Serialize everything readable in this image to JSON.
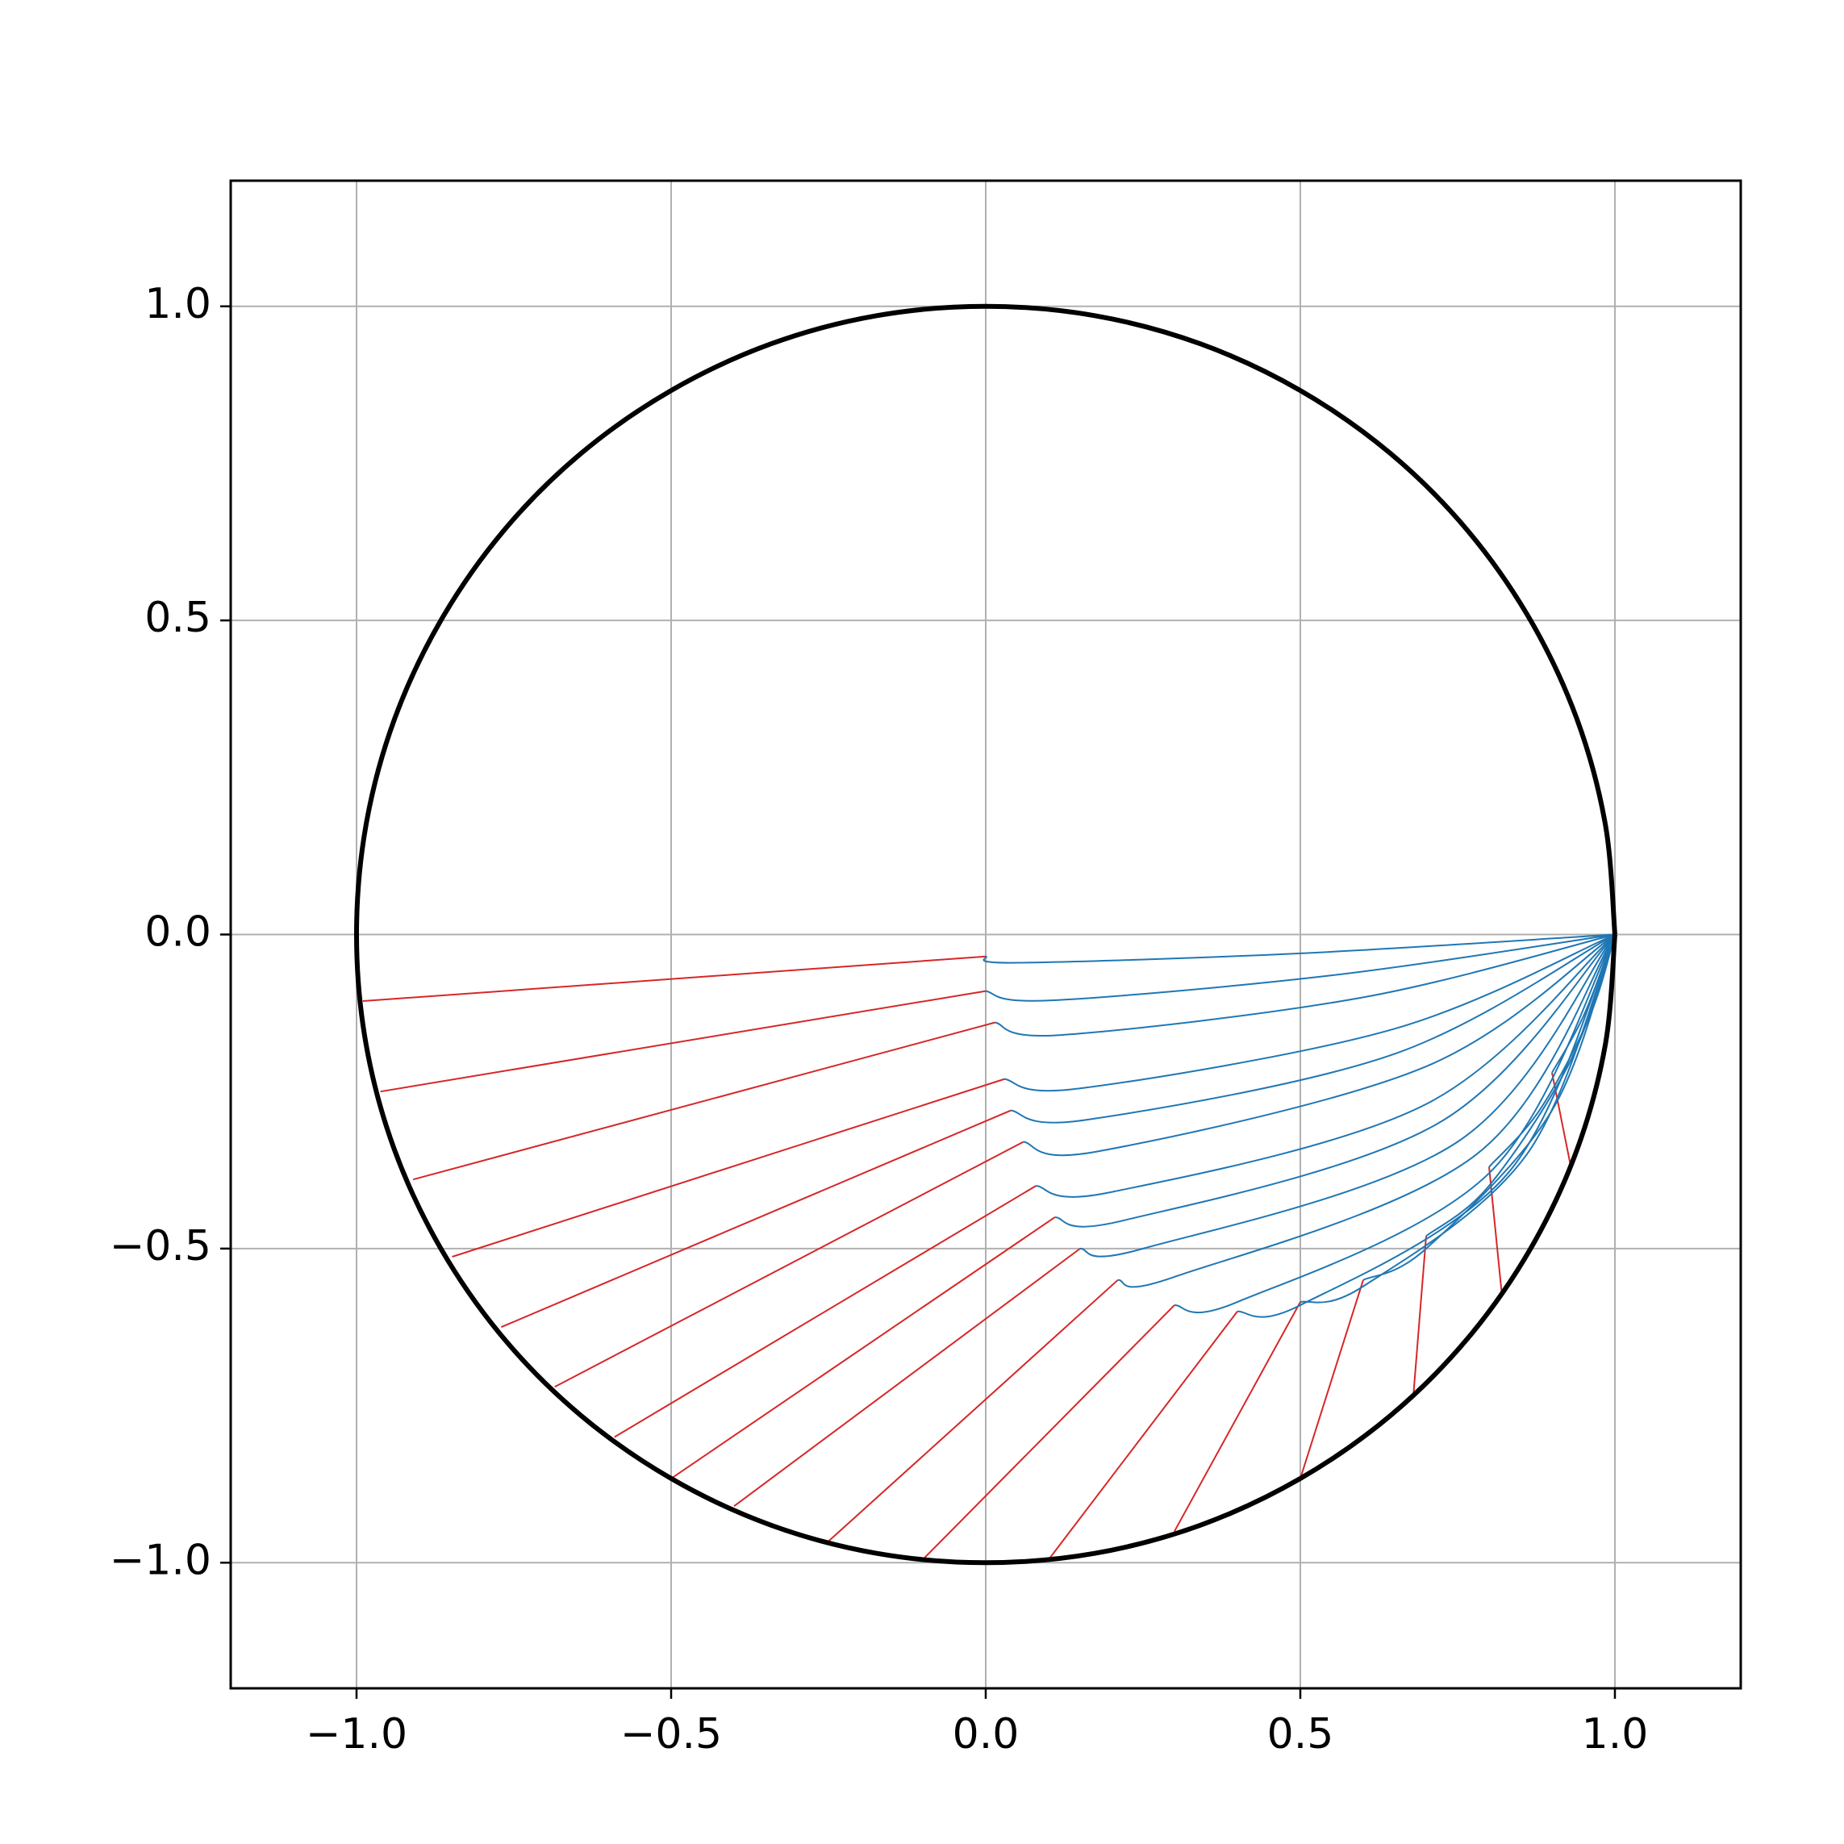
{
  "chart_data": {
    "type": "line",
    "grid": true,
    "xlim": [
      -1.2,
      1.2
    ],
    "ylim": [
      -1.2,
      1.2
    ],
    "xticks": [
      {
        "value": -1,
        "label": "−1.0"
      },
      {
        "value": -0.5,
        "label": "−0.5"
      },
      {
        "value": 0,
        "label": "0.0"
      },
      {
        "value": 0.5,
        "label": "0.5"
      },
      {
        "value": 1,
        "label": "1.0"
      }
    ],
    "yticks": [
      {
        "value": -1,
        "label": "−1.0"
      },
      {
        "value": -0.5,
        "label": "−0.5"
      },
      {
        "value": 0,
        "label": "0.0"
      },
      {
        "value": 0.5,
        "label": "0.5"
      },
      {
        "value": 1,
        "label": "1.0"
      }
    ],
    "series": [
      {
        "color": "#d62728",
        "x": [
          -0.99,
          0
        ],
        "y": [
          -0.106,
          -0.035
        ]
      },
      {
        "color": "#d62728",
        "x": [
          -0.962,
          0
        ],
        "y": [
          -0.25,
          -0.09
        ]
      },
      {
        "color": "#d62728",
        "x": [
          -0.91,
          0.015
        ],
        "y": [
          -0.39,
          -0.14
        ]
      },
      {
        "color": "#d62728",
        "x": [
          -0.848,
          0.03
        ],
        "y": [
          -0.513,
          -0.23
        ]
      },
      {
        "color": "#d62728",
        "x": [
          -0.77,
          0.04
        ],
        "y": [
          -0.625,
          -0.28
        ]
      },
      {
        "color": "#d62728",
        "x": [
          -0.685,
          0.06
        ],
        "y": [
          -0.72,
          -0.33
        ]
      },
      {
        "color": "#d62728",
        "x": [
          -0.59,
          0.08
        ],
        "y": [
          -0.8,
          -0.4
        ]
      },
      {
        "color": "#d62728",
        "x": [
          -0.5,
          0.11
        ],
        "y": [
          -0.866,
          -0.45
        ]
      },
      {
        "color": "#d62728",
        "x": [
          -0.4,
          0.15
        ],
        "y": [
          -0.91,
          -0.5
        ]
      },
      {
        "color": "#d62728",
        "x": [
          -0.25,
          0.21
        ],
        "y": [
          -0.966,
          -0.55
        ]
      },
      {
        "color": "#d62728",
        "x": [
          -0.1,
          0.3
        ],
        "y": [
          -0.995,
          -0.59
        ]
      },
      {
        "color": "#d62728",
        "x": [
          0.1,
          0.4
        ],
        "y": [
          -0.995,
          -0.6
        ]
      },
      {
        "color": "#d62728",
        "x": [
          0.3,
          0.5
        ],
        "y": [
          -0.95,
          -0.585
        ]
      },
      {
        "color": "#d62728",
        "x": [
          0.5,
          0.6
        ],
        "y": [
          -0.866,
          -0.55
        ]
      },
      {
        "color": "#d62728",
        "x": [
          0.68,
          0.7
        ],
        "y": [
          -0.73,
          -0.48
        ]
      },
      {
        "color": "#d62728",
        "x": [
          0.82,
          0.8
        ],
        "y": [
          -0.57,
          -0.37
        ]
      },
      {
        "color": "#d62728",
        "x": [
          0.93,
          0.9
        ],
        "y": [
          -0.37,
          -0.22
        ]
      },
      {
        "color": "#1f77b4",
        "x": [
          0,
          0.05,
          0.5,
          1
        ],
        "y": [
          -0.035,
          -0.045,
          -0.03,
          0
        ]
      },
      {
        "color": "#1f77b4",
        "x": [
          0,
          0.1,
          0.55,
          1
        ],
        "y": [
          -0.09,
          -0.105,
          -0.065,
          0
        ]
      },
      {
        "color": "#1f77b4",
        "x": [
          0.015,
          0.12,
          0.6,
          1
        ],
        "y": [
          -0.14,
          -0.16,
          -0.1,
          0
        ]
      },
      {
        "color": "#1f77b4",
        "x": [
          0.03,
          0.15,
          0.65,
          1
        ],
        "y": [
          -0.23,
          -0.245,
          -0.15,
          0
        ]
      },
      {
        "color": "#1f77b4",
        "x": [
          0.04,
          0.16,
          0.65,
          1
        ],
        "y": [
          -0.28,
          -0.295,
          -0.19,
          0
        ]
      },
      {
        "color": "#1f77b4",
        "x": [
          0.06,
          0.18,
          0.7,
          1
        ],
        "y": [
          -0.33,
          -0.345,
          -0.21,
          0
        ]
      },
      {
        "color": "#1f77b4",
        "x": [
          0.08,
          0.2,
          0.7,
          1
        ],
        "y": [
          -0.4,
          -0.41,
          -0.27,
          0
        ]
      },
      {
        "color": "#1f77b4",
        "x": [
          0.11,
          0.22,
          0.72,
          1
        ],
        "y": [
          -0.45,
          -0.455,
          -0.3,
          0
        ]
      },
      {
        "color": "#1f77b4",
        "x": [
          0.15,
          0.25,
          0.75,
          1
        ],
        "y": [
          -0.5,
          -0.5,
          -0.33,
          0
        ]
      },
      {
        "color": "#1f77b4",
        "x": [
          0.21,
          0.3,
          0.78,
          1
        ],
        "y": [
          -0.55,
          -0.545,
          -0.35,
          0
        ]
      },
      {
        "color": "#1f77b4",
        "x": [
          0.3,
          0.4,
          0.8,
          1
        ],
        "y": [
          -0.59,
          -0.585,
          -0.38,
          0
        ]
      },
      {
        "color": "#1f77b4",
        "x": [
          0.4,
          0.5,
          0.83,
          1
        ],
        "y": [
          -0.6,
          -0.59,
          -0.38,
          0
        ]
      },
      {
        "color": "#1f77b4",
        "x": [
          0.5,
          0.6,
          0.86,
          1
        ],
        "y": [
          -0.585,
          -0.56,
          -0.35,
          0
        ]
      },
      {
        "color": "#1f77b4",
        "x": [
          0.6,
          0.7,
          0.9,
          1
        ],
        "y": [
          -0.55,
          -0.5,
          -0.28,
          0
        ]
      },
      {
        "color": "#1f77b4",
        "x": [
          0.7,
          0.8,
          0.93,
          1
        ],
        "y": [
          -0.48,
          -0.4,
          -0.2,
          0
        ]
      },
      {
        "color": "#1f77b4",
        "x": [
          0.8,
          0.88,
          0.96,
          1
        ],
        "y": [
          -0.37,
          -0.28,
          -0.13,
          0
        ]
      },
      {
        "color": "#1f77b4",
        "x": [
          0.9,
          0.95,
          1
        ],
        "y": [
          -0.22,
          -0.13,
          0
        ]
      },
      {
        "color": "#000000",
        "x": [
          1,
          0.985,
          0.94,
          0.866,
          0.766,
          0.643,
          0.5,
          0.342,
          0.174,
          0,
          -0.174,
          -0.342,
          -0.5,
          -0.643,
          -0.766,
          -0.866,
          -0.94,
          -0.985,
          -1,
          -0.985,
          -0.94,
          -0.866,
          -0.766,
          -0.643,
          -0.5,
          -0.342,
          -0.174,
          0,
          0.174,
          0.342,
          0.5,
          0.643,
          0.766,
          0.866,
          0.94,
          0.985,
          1
        ],
        "y": [
          0,
          0.174,
          0.342,
          0.5,
          0.643,
          0.766,
          0.866,
          0.94,
          0.985,
          1,
          0.985,
          0.94,
          0.866,
          0.766,
          0.643,
          0.5,
          0.342,
          0.174,
          0,
          -0.174,
          -0.342,
          -0.5,
          -0.643,
          -0.766,
          -0.866,
          -0.94,
          -0.985,
          -1,
          -0.985,
          -0.94,
          -0.866,
          -0.766,
          -0.643,
          -0.5,
          -0.342,
          -0.174,
          0
        ]
      }
    ]
  }
}
